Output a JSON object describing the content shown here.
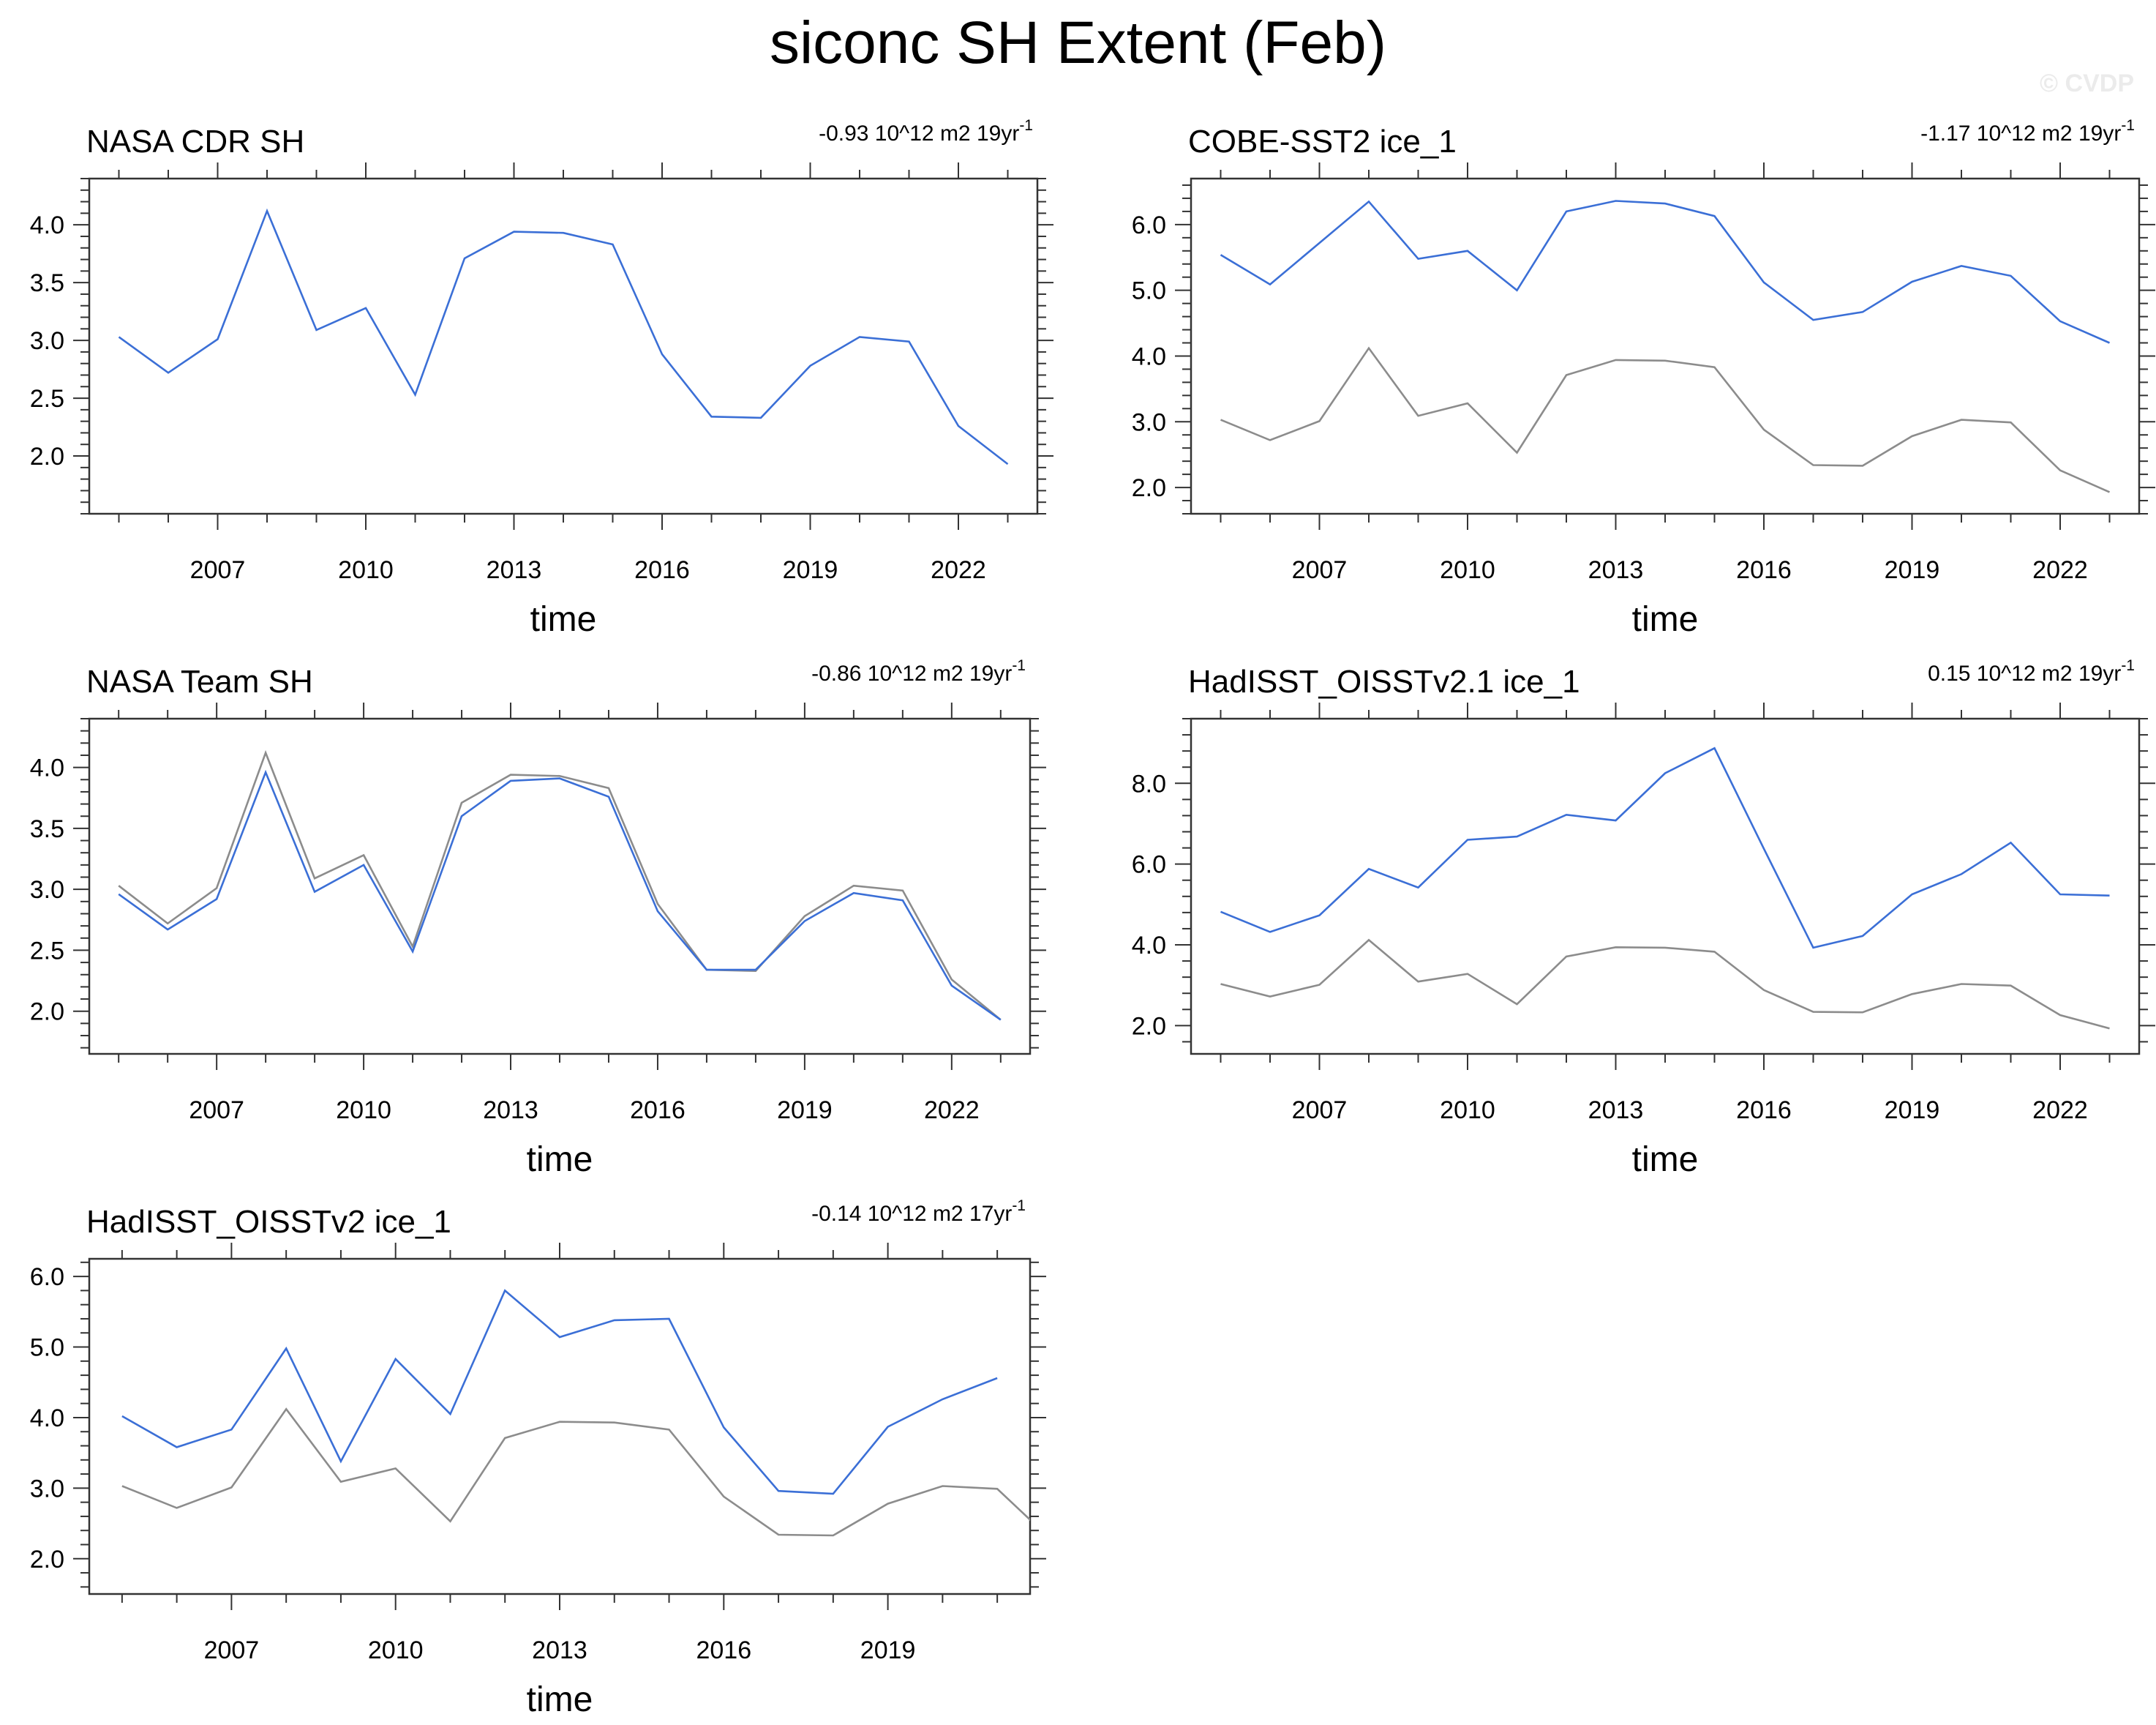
{
  "title": "siconc SH Extent (Feb)",
  "watermark": "© CVDP",
  "colors": {
    "model": "#3b6fd6",
    "obs": "#8c8c8c",
    "axis": "#333333"
  },
  "chart_data": [
    {
      "type": "line",
      "title": "NASA CDR SH",
      "trend": "-0.93 10^12 m2 19yr",
      "trend_sup": "-1",
      "xlabel": "time",
      "ylabel": "",
      "xlim": [
        2004.4,
        2023.6
      ],
      "ylim": [
        1.5,
        4.4
      ],
      "yticks": [
        2.0,
        2.5,
        3.0,
        3.5,
        4.0
      ],
      "ytick_labels": [
        "2.0",
        "2.5",
        "3.0",
        "3.5",
        "4.0"
      ],
      "xticks": [
        2007,
        2010,
        2013,
        2016,
        2019,
        2022
      ],
      "xtick_labels": [
        "2007",
        "2010",
        "2013",
        "2016",
        "2019",
        "2022"
      ],
      "series": [
        {
          "role": "model",
          "x": [
            2005,
            2006,
            2007,
            2008,
            2009,
            2010,
            2011,
            2012,
            2013,
            2014,
            2015,
            2016,
            2017,
            2018,
            2019,
            2020,
            2021,
            2022,
            2023
          ],
          "y": [
            3.03,
            2.72,
            3.01,
            4.12,
            3.09,
            3.28,
            2.53,
            3.71,
            3.94,
            3.93,
            3.83,
            2.88,
            2.34,
            2.33,
            2.78,
            3.03,
            2.99,
            2.26,
            1.93
          ]
        }
      ]
    },
    {
      "type": "line",
      "title": "COBE-SST2 ice_1",
      "trend": "-1.17 10^12 m2 19yr",
      "trend_sup": "-1",
      "xlabel": "time",
      "ylabel": "",
      "xlim": [
        2004.4,
        2023.6
      ],
      "ylim": [
        1.6,
        6.7
      ],
      "yticks": [
        2.0,
        3.0,
        4.0,
        5.0,
        6.0
      ],
      "ytick_labels": [
        "2.0",
        "3.0",
        "4.0",
        "5.0",
        "6.0"
      ],
      "xticks": [
        2007,
        2010,
        2013,
        2016,
        2019,
        2022
      ],
      "xtick_labels": [
        "2007",
        "2010",
        "2013",
        "2016",
        "2019",
        "2022"
      ],
      "series": [
        {
          "role": "obs",
          "x": [
            2005,
            2006,
            2007,
            2008,
            2009,
            2010,
            2011,
            2012,
            2013,
            2014,
            2015,
            2016,
            2017,
            2018,
            2019,
            2020,
            2021,
            2022,
            2023
          ],
          "y": [
            3.03,
            2.72,
            3.01,
            4.12,
            3.09,
            3.28,
            2.53,
            3.71,
            3.94,
            3.93,
            3.83,
            2.88,
            2.34,
            2.33,
            2.78,
            3.03,
            2.99,
            2.26,
            1.93
          ]
        },
        {
          "role": "model",
          "x": [
            2005,
            2006,
            2007,
            2008,
            2009,
            2010,
            2011,
            2012,
            2013,
            2014,
            2015,
            2016,
            2017,
            2018,
            2019,
            2020,
            2021,
            2022,
            2023
          ],
          "y": [
            5.54,
            5.09,
            5.72,
            6.35,
            5.48,
            5.6,
            5.0,
            6.2,
            6.36,
            6.32,
            6.13,
            5.12,
            4.55,
            4.67,
            5.13,
            5.37,
            5.22,
            4.53,
            4.2
          ]
        }
      ]
    },
    {
      "type": "line",
      "title": "NASA Team SH",
      "trend": "-0.86 10^12 m2 19yr",
      "trend_sup": "-1",
      "xlabel": "time",
      "ylabel": "",
      "xlim": [
        2004.4,
        2023.6
      ],
      "ylim": [
        1.65,
        4.4
      ],
      "yticks": [
        2.0,
        2.5,
        3.0,
        3.5,
        4.0
      ],
      "ytick_labels": [
        "2.0",
        "2.5",
        "3.0",
        "3.5",
        "4.0"
      ],
      "xticks": [
        2007,
        2010,
        2013,
        2016,
        2019,
        2022
      ],
      "xtick_labels": [
        "2007",
        "2010",
        "2013",
        "2016",
        "2019",
        "2022"
      ],
      "series": [
        {
          "role": "obs",
          "x": [
            2005,
            2006,
            2007,
            2008,
            2009,
            2010,
            2011,
            2012,
            2013,
            2014,
            2015,
            2016,
            2017,
            2018,
            2019,
            2020,
            2021,
            2022,
            2023
          ],
          "y": [
            3.03,
            2.72,
            3.01,
            4.12,
            3.09,
            3.28,
            2.53,
            3.71,
            3.94,
            3.93,
            3.83,
            2.88,
            2.34,
            2.33,
            2.78,
            3.03,
            2.99,
            2.26,
            1.93
          ]
        },
        {
          "role": "model",
          "x": [
            2005,
            2006,
            2007,
            2008,
            2009,
            2010,
            2011,
            2012,
            2013,
            2014,
            2015,
            2016,
            2017,
            2018,
            2019,
            2020,
            2021,
            2022,
            2023
          ],
          "y": [
            2.96,
            2.67,
            2.92,
            3.96,
            2.98,
            3.2,
            2.49,
            3.6,
            3.89,
            3.91,
            3.76,
            2.82,
            2.34,
            2.34,
            2.74,
            2.97,
            2.91,
            2.21,
            1.93
          ]
        }
      ]
    },
    {
      "type": "line",
      "title": "HadISST_OISSTv2.1 ice_1",
      "trend": "0.15 10^12 m2 19yr",
      "trend_sup": "-1",
      "xlabel": "time",
      "ylabel": "",
      "xlim": [
        2004.4,
        2023.6
      ],
      "ylim": [
        1.3,
        9.6
      ],
      "yticks": [
        2.0,
        4.0,
        6.0,
        8.0
      ],
      "ytick_labels": [
        "2.0",
        "4.0",
        "6.0",
        "8.0"
      ],
      "xticks": [
        2007,
        2010,
        2013,
        2016,
        2019,
        2022
      ],
      "xtick_labels": [
        "2007",
        "2010",
        "2013",
        "2016",
        "2019",
        "2022"
      ],
      "series": [
        {
          "role": "obs",
          "x": [
            2005,
            2006,
            2007,
            2008,
            2009,
            2010,
            2011,
            2012,
            2013,
            2014,
            2015,
            2016,
            2017,
            2018,
            2019,
            2020,
            2021,
            2022,
            2023
          ],
          "y": [
            3.03,
            2.72,
            3.01,
            4.12,
            3.09,
            3.28,
            2.53,
            3.71,
            3.94,
            3.93,
            3.83,
            2.88,
            2.34,
            2.33,
            2.78,
            3.03,
            2.99,
            2.26,
            1.93
          ]
        },
        {
          "role": "model",
          "x": [
            2005,
            2006,
            2007,
            2008,
            2009,
            2010,
            2011,
            2012,
            2013,
            2014,
            2015,
            2016,
            2017,
            2018,
            2019,
            2020,
            2021,
            2022,
            2023
          ],
          "y": [
            4.82,
            4.32,
            4.73,
            5.88,
            5.42,
            6.6,
            6.68,
            7.22,
            7.08,
            8.25,
            8.87,
            6.38,
            3.93,
            4.22,
            5.25,
            5.75,
            6.53,
            5.25,
            5.22
          ]
        }
      ]
    },
    {
      "type": "line",
      "title": "HadISST_OISSTv2 ice_1",
      "trend": "-0.14 10^12 m2 17yr",
      "trend_sup": "-1",
      "xlabel": "time",
      "ylabel": "",
      "xlim": [
        2004.4,
        2021.6
      ],
      "ylim": [
        1.5,
        6.25
      ],
      "yticks": [
        2.0,
        3.0,
        4.0,
        5.0,
        6.0
      ],
      "ytick_labels": [
        "2.0",
        "3.0",
        "4.0",
        "5.0",
        "6.0"
      ],
      "xticks": [
        2007,
        2010,
        2013,
        2016,
        2019
      ],
      "xtick_labels": [
        "2007",
        "2010",
        "2013",
        "2016",
        "2019"
      ],
      "series": [
        {
          "role": "obs",
          "x": [
            2005,
            2006,
            2007,
            2008,
            2009,
            2010,
            2011,
            2012,
            2013,
            2014,
            2015,
            2016,
            2017,
            2018,
            2019,
            2020,
            2021,
            2022
          ],
          "y": [
            3.03,
            2.72,
            3.01,
            4.12,
            3.09,
            3.28,
            2.53,
            3.71,
            3.94,
            3.93,
            3.83,
            2.88,
            2.34,
            2.33,
            2.78,
            3.03,
            2.99,
            2.26
          ]
        },
        {
          "role": "model",
          "x": [
            2005,
            2006,
            2007,
            2008,
            2009,
            2010,
            2011,
            2012,
            2013,
            2014,
            2015,
            2016,
            2017,
            2018,
            2019,
            2020,
            2021
          ],
          "y": [
            4.02,
            3.58,
            3.83,
            4.98,
            3.38,
            4.83,
            4.05,
            5.8,
            5.14,
            5.38,
            5.4,
            3.86,
            2.96,
            2.92,
            3.87,
            4.26,
            4.56
          ]
        }
      ]
    }
  ]
}
